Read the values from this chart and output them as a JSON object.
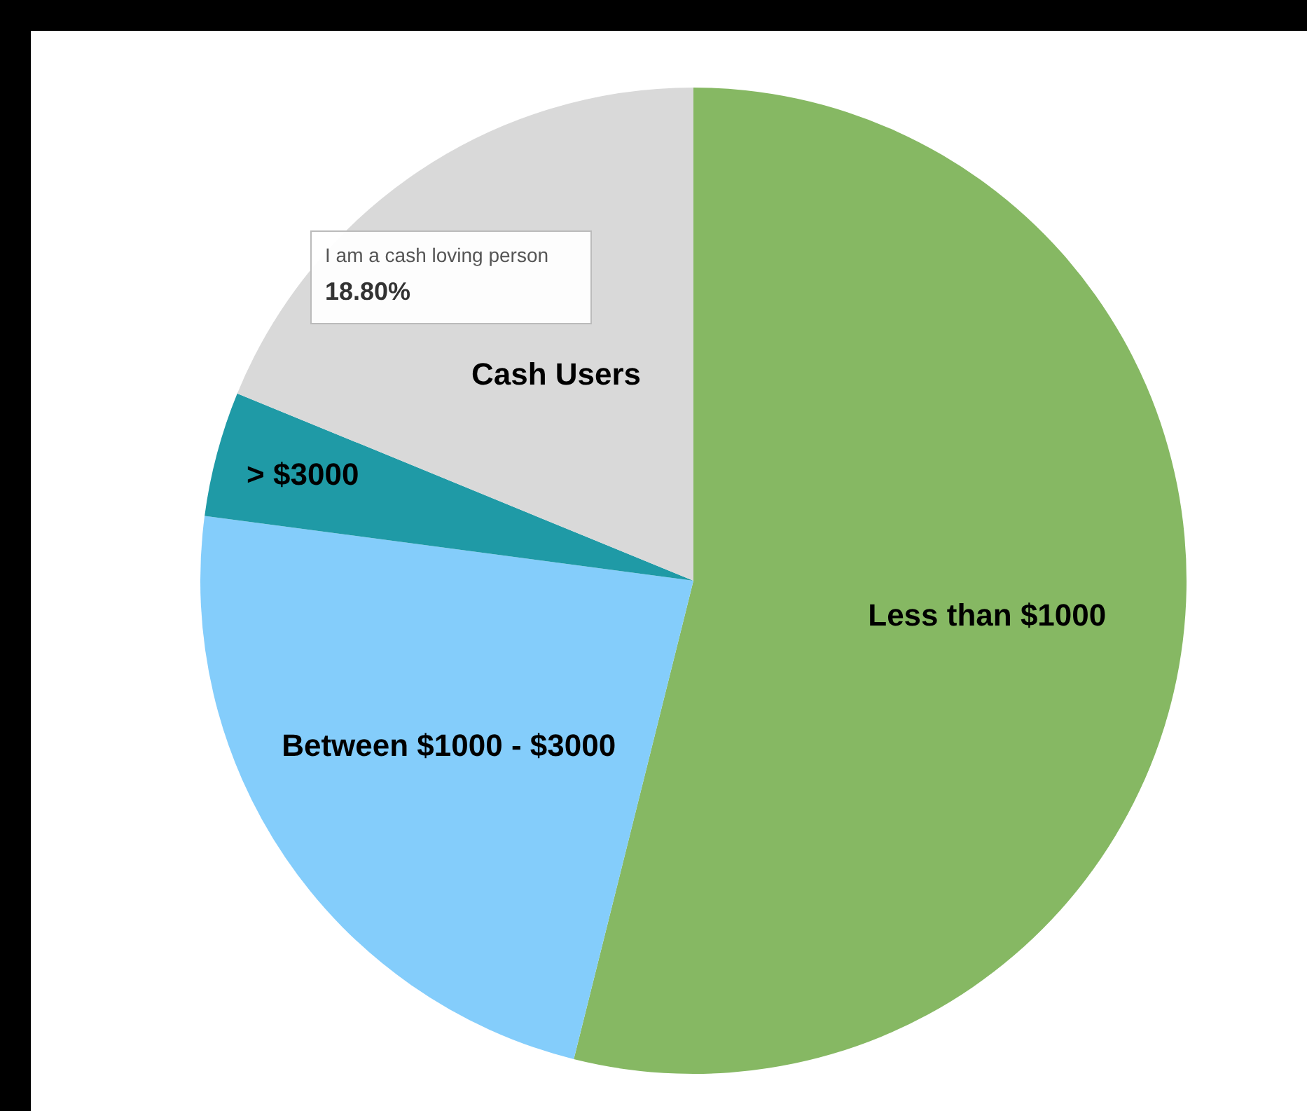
{
  "chart_data": {
    "type": "pie",
    "categories": [
      "Less than $1000",
      "Between $1000 - $3000",
      "> $3000",
      "Cash Users"
    ],
    "values": [
      53.9,
      23.2,
      4.1,
      18.8
    ],
    "colors": [
      "#86b863",
      "#84cdfb",
      "#1f9aa6",
      "#d9d9d9"
    ],
    "value_labels": [
      null,
      null,
      null,
      "18.80%"
    ],
    "annotations": [
      "I am a cash loving person"
    ],
    "legend": false
  }
}
